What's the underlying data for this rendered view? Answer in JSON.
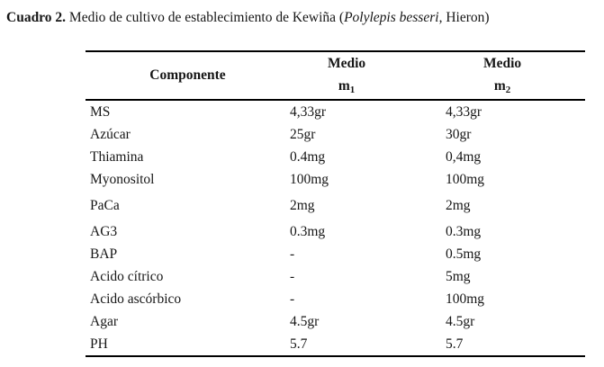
{
  "title": {
    "prefix": "Cuadro 2.",
    "middle": " Medio de cultivo de establecimiento de Kewiña (",
    "species": "Polylepis besseri",
    "suffix": ", Hieron)"
  },
  "table": {
    "header": {
      "component": "Componente",
      "m1": {
        "line1": "Medio",
        "base": "m",
        "sub": "1"
      },
      "m2": {
        "line1": "Medio",
        "base": "m",
        "sub": "2"
      }
    },
    "rows": [
      {
        "component": "MS",
        "m1": "4,33gr",
        "m2": "4,33gr",
        "tall": false
      },
      {
        "component": "Azúcar",
        "m1": "25gr",
        "m2": "30gr",
        "tall": false
      },
      {
        "component": "Thiamina",
        "m1": "0.4mg",
        "m2": "0,4mg",
        "tall": false
      },
      {
        "component": "Myonositol",
        "m1": "100mg",
        "m2": "100mg",
        "tall": false
      },
      {
        "component": "PaCa",
        "m1": "2mg",
        "m2": "2mg",
        "tall": true
      },
      {
        "component": "AG3",
        "m1": "0.3mg",
        "m2": "0.3mg",
        "tall": true
      },
      {
        "component": "BAP",
        "m1": "-",
        "m2": "0.5mg",
        "tall": false
      },
      {
        "component": "Acido cítrico",
        "m1": "-",
        "m2": "5mg",
        "tall": false
      },
      {
        "component": "Acido ascórbico",
        "m1": "-",
        "m2": "100mg",
        "tall": false
      },
      {
        "component": "Agar",
        "m1": "4.5gr",
        "m2": "4.5gr",
        "tall": false
      },
      {
        "component": "PH",
        "m1": "5.7",
        "m2": "5.7",
        "tall": false
      }
    ]
  },
  "colors": {
    "text": "#161616",
    "rule": "#000000",
    "background": "#ffffff"
  }
}
